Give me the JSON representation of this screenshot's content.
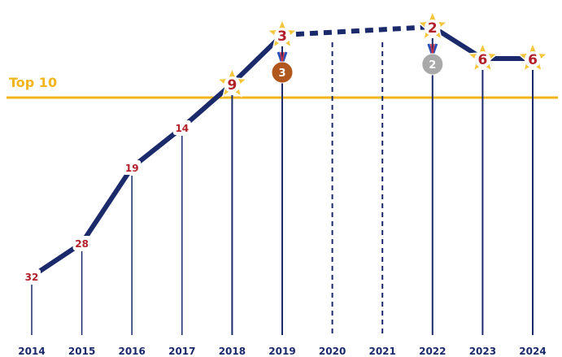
{
  "chart_data": {
    "type": "line",
    "title": "",
    "xlabel": "",
    "ylabel": "",
    "y_inverted": true,
    "x": [
      "2014",
      "2015",
      "2016",
      "2017",
      "2018",
      "2019",
      "2020",
      "2021",
      "2022",
      "2023",
      "2024"
    ],
    "series": [
      {
        "values": [
          32,
          28,
          19,
          14,
          9,
          3,
          null,
          null,
          2,
          6,
          6
        ]
      }
    ],
    "gap_years": [
      "2020",
      "2021"
    ],
    "gap_style": "dashed",
    "reference_line": {
      "label": "Top 10",
      "value": 10
    },
    "medals": [
      {
        "year": "2019",
        "label": "3",
        "color": "#b0571e"
      },
      {
        "year": "2022",
        "label": "2",
        "color": "#a9a9a9"
      }
    ],
    "colors": {
      "line": "#1b2a6b",
      "reference": "#f2b51b",
      "rank_text": "#b3202a",
      "star": "#f4c53d"
    }
  }
}
